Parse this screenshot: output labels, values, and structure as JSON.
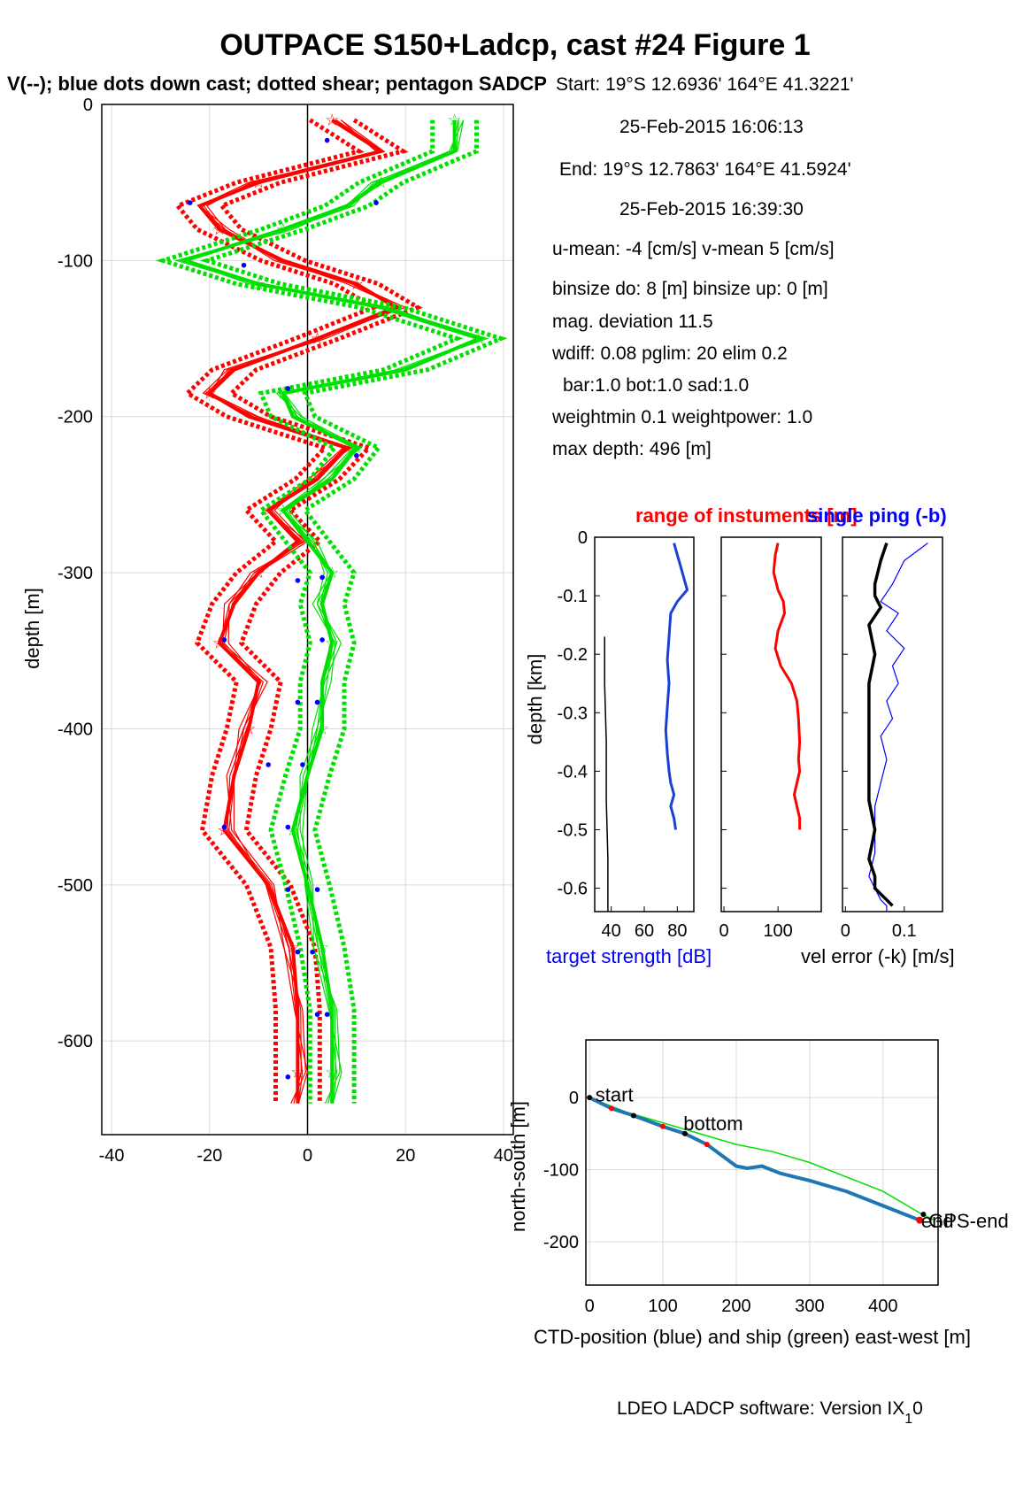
{
  "title": "OUTPACE S150+Ladcp, cast #24  Figure 1",
  "subtitle": "V(--); blue dots down cast; dotted shear; pentagon SADCP",
  "info": {
    "start": "Start:  19°S 12.6936'     164°E 41.3221'",
    "start_time": "25-Feb-2015 16:06:13",
    "end": "End:   19°S 12.7863'     164°E 41.5924'",
    "end_time": "25-Feb-2015 16:39:30",
    "means": "u-mean:  -4 [cm/s]    v-mean   5 [cm/s]",
    "binsize": "binsize do: 8 [m]  binsize up:  0 [m]",
    "magdev": "mag. deviation 11.5",
    "wdiff": "wdiff: 0.08  pglim: 20  elim 0.2",
    "bar": "bar:1.0 bot:1.0 sad:1.0",
    "weight": "weightmin 0.1  weightpower: 1.0",
    "maxdepth": "max depth: 496 [m]"
  },
  "footer": "LDEO LADCP software: Version IX",
  "footer_sub": "1",
  "footer_tail": "0",
  "colors": {
    "u": "#ff0000",
    "v": "#00e000",
    "dots": "#0000ff",
    "ctd": "#1f77b4",
    "black": "#000000",
    "grid": "#d9d9d9"
  },
  "chart_data": [
    {
      "type": "line",
      "ylabel": "depth [m]",
      "xlim": [
        -42,
        42
      ],
      "ylim": [
        -660,
        0
      ],
      "x_ticks": [
        -40,
        -20,
        0,
        20,
        40
      ],
      "y_ticks": [
        0,
        -100,
        -200,
        -300,
        -400,
        -500,
        -600
      ],
      "series": [
        {
          "color": "red",
          "depth": [
            -10,
            -30,
            -50,
            -65,
            -80,
            -100,
            -115,
            -130,
            -150,
            -170,
            -185,
            -200,
            -220,
            -240,
            -260,
            -280,
            -300,
            -320,
            -345,
            -370,
            -400,
            -430,
            -465,
            -500,
            -540,
            -580,
            -620,
            -640
          ],
          "values": [
            5,
            15,
            -10,
            -22,
            -18,
            -5,
            10,
            18,
            2,
            -15,
            -20,
            -12,
            8,
            2,
            -8,
            -2,
            -10,
            -15,
            -18,
            -10,
            -12,
            -15,
            -17,
            -8,
            -3,
            -2,
            -2,
            -2
          ]
        },
        {
          "color": "green",
          "depth": [
            -10,
            -30,
            -50,
            -65,
            -80,
            -100,
            -115,
            -130,
            -150,
            -170,
            -185,
            -200,
            -220,
            -240,
            -260,
            -280,
            -300,
            -320,
            -345,
            -370,
            -400,
            -430,
            -465,
            -500,
            -540,
            -580,
            -620,
            -640
          ],
          "values": [
            30,
            30,
            15,
            8,
            -5,
            -25,
            -10,
            15,
            35,
            20,
            -5,
            -3,
            10,
            5,
            -5,
            0,
            5,
            3,
            5,
            3,
            3,
            0,
            -3,
            0,
            3,
            5,
            5,
            5
          ]
        }
      ],
      "blue_dots": [
        [
          4,
          -23
        ],
        [
          -24,
          -63
        ],
        [
          14,
          -63
        ],
        [
          -13,
          -103
        ],
        [
          -4,
          -182
        ],
        [
          10,
          -225
        ],
        [
          -2,
          -305
        ],
        [
          3,
          -303
        ],
        [
          -17,
          -343
        ],
        [
          3,
          -343
        ],
        [
          -2,
          -383
        ],
        [
          2,
          -383
        ],
        [
          -8,
          -423
        ],
        [
          -1,
          -423
        ],
        [
          -17,
          -463
        ],
        [
          -4,
          -463
        ],
        [
          -4,
          -503
        ],
        [
          2,
          -503
        ],
        [
          -2,
          -543
        ],
        [
          1,
          -543
        ],
        [
          2,
          -583
        ],
        [
          4,
          -583
        ],
        [
          -4,
          -623
        ]
      ]
    },
    {
      "type": "line",
      "title": "range of instuments [m]",
      "title2": "single ping (-b)",
      "ylabel": "depth [km]",
      "ylim": [
        -0.64,
        0
      ],
      "y_ticks": [
        0,
        -0.1,
        -0.2,
        -0.3,
        -0.4,
        -0.5,
        -0.6
      ],
      "panel1_xticks": [
        40,
        60,
        80
      ],
      "panel1_xlabel": "target strength [dB]",
      "panel2_xticks": [
        0,
        100
      ],
      "panel3_xticks": [
        0,
        0.1
      ],
      "panel3_xlabel": "vel error (-k) [m/s]",
      "target_strength": {
        "x": [
          78,
          80,
          82,
          84,
          86,
          80,
          76,
          75,
          74,
          75,
          74,
          73,
          74,
          75,
          76,
          78,
          76,
          77,
          78,
          79
        ],
        "depth": [
          -0.01,
          -0.03,
          -0.05,
          -0.07,
          -0.09,
          -0.11,
          -0.13,
          -0.17,
          -0.21,
          -0.25,
          -0.29,
          -0.33,
          -0.37,
          -0.4,
          -0.42,
          -0.44,
          -0.46,
          -0.47,
          -0.48,
          -0.5
        ]
      },
      "black_line_panel1": {
        "x": [
          36,
          36,
          37,
          37,
          38,
          38,
          38
        ],
        "depth": [
          -0.17,
          -0.25,
          -0.35,
          -0.45,
          -0.55,
          -0.6,
          -0.64
        ]
      },
      "range": {
        "x": [
          100,
          95,
          92,
          100,
          110,
          112,
          100,
          95,
          105,
          125,
          135,
          138,
          140,
          138,
          140,
          135,
          130,
          135,
          140,
          140
        ],
        "depth": [
          -0.01,
          -0.03,
          -0.06,
          -0.09,
          -0.11,
          -0.13,
          -0.16,
          -0.19,
          -0.22,
          -0.25,
          -0.28,
          -0.31,
          -0.35,
          -0.38,
          -0.4,
          -0.42,
          -0.44,
          -0.46,
          -0.48,
          -0.5
        ]
      },
      "vel_error_black": {
        "x": [
          0.07,
          0.06,
          0.05,
          0.05,
          0.06,
          0.04,
          0.05,
          0.04,
          0.04,
          0.04,
          0.04,
          0.04,
          0.05,
          0.04,
          0.05,
          0.05,
          0.06,
          0.07,
          0.08
        ],
        "depth": [
          -0.01,
          -0.04,
          -0.08,
          -0.1,
          -0.12,
          -0.15,
          -0.2,
          -0.25,
          -0.3,
          -0.35,
          -0.4,
          -0.45,
          -0.5,
          -0.55,
          -0.58,
          -0.6,
          -0.61,
          -0.62,
          -0.63
        ]
      },
      "vel_error_blue": {
        "x": [
          0.14,
          0.1,
          0.08,
          0.06,
          0.09,
          0.07,
          0.1,
          0.08,
          0.09,
          0.07,
          0.08,
          0.06,
          0.07,
          0.06,
          0.05,
          0.05,
          0.05,
          0.04,
          0.05,
          0.06,
          0.07,
          0.07
        ],
        "depth": [
          -0.01,
          -0.04,
          -0.08,
          -0.11,
          -0.13,
          -0.16,
          -0.19,
          -0.22,
          -0.25,
          -0.28,
          -0.31,
          -0.34,
          -0.38,
          -0.42,
          -0.46,
          -0.5,
          -0.54,
          -0.58,
          -0.6,
          -0.62,
          -0.63,
          -0.64
        ]
      }
    },
    {
      "type": "line",
      "xlabel": "CTD-position (blue) and ship (green) east-west [m]",
      "ylabel": "north-south [m]",
      "xlim": [
        -5,
        475
      ],
      "ylim": [
        -260,
        80
      ],
      "x_ticks": [
        0,
        100,
        200,
        300,
        400
      ],
      "y_ticks": [
        0,
        -100,
        -200
      ],
      "ctd_track": {
        "x": [
          0,
          30,
          60,
          100,
          130,
          160,
          180,
          200,
          215,
          235,
          260,
          300,
          350,
          400,
          450
        ],
        "y": [
          0,
          -15,
          -25,
          -40,
          -50,
          -65,
          -80,
          -95,
          -98,
          -95,
          -105,
          -115,
          -130,
          -150,
          -170
        ]
      },
      "ship_track": {
        "x": [
          0,
          50,
          100,
          150,
          200,
          250,
          300,
          350,
          400,
          450,
          470
        ],
        "y": [
          0,
          -20,
          -35,
          -50,
          -65,
          -75,
          -90,
          -110,
          -130,
          -160,
          -170
        ]
      },
      "labels": {
        "start": "start",
        "bottom": "bottom",
        "end": "end",
        "gps_end": "GPS-end"
      }
    }
  ]
}
